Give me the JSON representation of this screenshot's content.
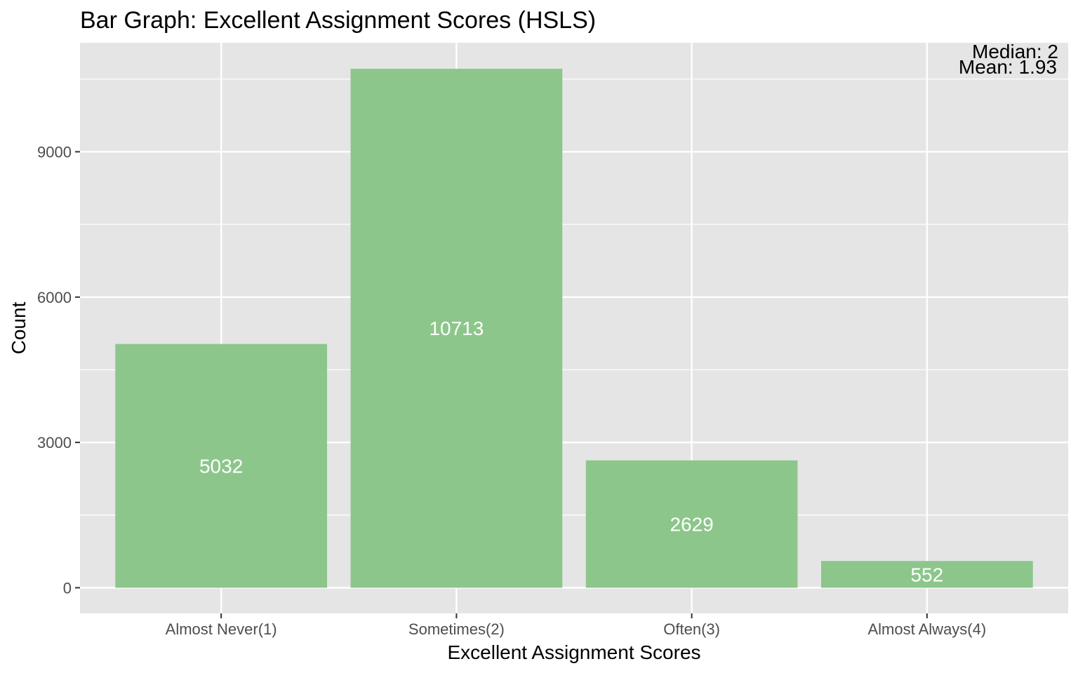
{
  "chart_data": {
    "type": "bar",
    "title": "Bar Graph: Excellent Assignment Scores (HSLS)",
    "xlabel": "Excellent Assignment Scores",
    "ylabel": "Count",
    "categories": [
      "Almost Never(1)",
      "Sometimes(2)",
      "Often(3)",
      "Almost Always(4)"
    ],
    "values": [
      5032,
      10713,
      2629,
      552
    ],
    "data_labels": [
      "5032",
      "10713",
      "2629",
      "552"
    ],
    "yticks": [
      0,
      3000,
      6000,
      9000
    ],
    "ytick_labels": [
      "0",
      "3000",
      "6000",
      "9000"
    ],
    "ylim": [
      -530,
      11250
    ],
    "grid": true,
    "annotations": [
      "Median: 2",
      "Mean: 1.93"
    ],
    "colors": {
      "bar": "#8CC68B",
      "panel": "#E5E5E5",
      "grid": "#FFFFFF",
      "bar_label": "#FFFFFF"
    }
  }
}
